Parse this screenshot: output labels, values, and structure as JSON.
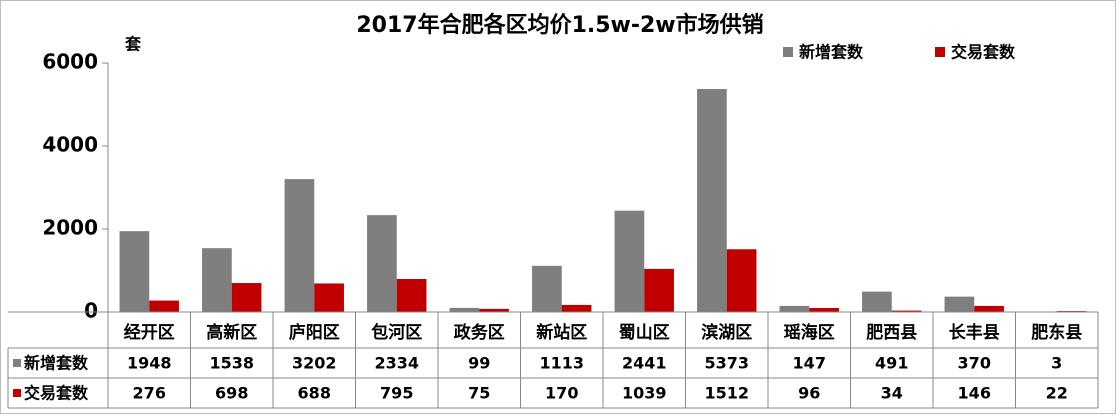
{
  "chart_data": {
    "type": "bar",
    "title": "2017年合肥各区均价1.5w-2w市场供销",
    "y_label": "套",
    "categories": [
      "经开区",
      "高新区",
      "庐阳区",
      "包河区",
      "政务区",
      "新站区",
      "蜀山区",
      "滨湖区",
      "瑶海区",
      "肥西县",
      "长丰县",
      "肥东县"
    ],
    "series": [
      {
        "name": "新增套数",
        "color": "#7f7f7f",
        "values": [
          1948,
          1538,
          3202,
          2334,
          99,
          1113,
          2441,
          5373,
          147,
          491,
          370,
          3
        ]
      },
      {
        "name": "交易套数",
        "color": "#c00000",
        "values": [
          276,
          698,
          688,
          795,
          75,
          170,
          1039,
          1512,
          96,
          34,
          146,
          22
        ]
      }
    ],
    "ylim": [
      0,
      6000
    ],
    "yticks": [
      0,
      2000,
      4000,
      6000
    ],
    "grid": false,
    "legend": "top-right",
    "data_table": true
  }
}
